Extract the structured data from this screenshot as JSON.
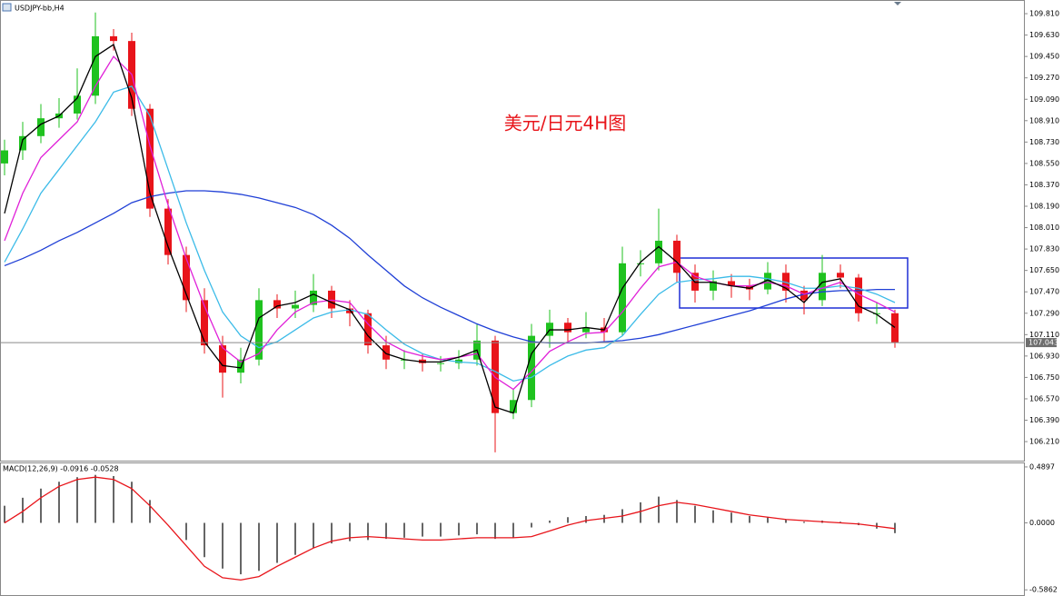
{
  "chart_data": [
    {
      "type": "candlestick",
      "title": "USDJPY-bb,H4",
      "annotation": "美元/日元4H图",
      "open": [
        108.55,
        108.66,
        108.78,
        108.93,
        108.97,
        109.12,
        109.62,
        109.58,
        109.01,
        108.17,
        107.78,
        107.4,
        107.02,
        106.79,
        106.9,
        107.4,
        107.33,
        107.36,
        107.48,
        107.33,
        107.29,
        107.02,
        106.9,
        106.9,
        106.87,
        106.87,
        106.9,
        107.06,
        106.45,
        106.56,
        107.1,
        107.21,
        107.13,
        107.17,
        107.13,
        107.71,
        107.71,
        107.9,
        107.63,
        107.48,
        107.56,
        107.52,
        107.49,
        107.63,
        107.48,
        107.4,
        107.63,
        107.59,
        107.29,
        107.29
      ],
      "high": [
        108.75,
        108.9,
        109.05,
        109.1,
        109.35,
        109.82,
        109.68,
        109.65,
        109.05,
        108.25,
        107.85,
        107.5,
        107.1,
        107.0,
        107.5,
        107.45,
        107.48,
        107.62,
        107.52,
        107.4,
        107.32,
        107.1,
        106.98,
        106.95,
        106.93,
        106.98,
        107.2,
        107.1,
        106.65,
        107.2,
        107.32,
        107.25,
        107.3,
        107.25,
        107.85,
        107.82,
        108.17,
        107.95,
        107.7,
        107.65,
        107.62,
        107.58,
        107.72,
        107.7,
        107.52,
        107.78,
        107.7,
        107.62,
        107.38,
        107.32
      ],
      "low": [
        108.45,
        108.58,
        108.72,
        108.85,
        108.92,
        109.05,
        109.5,
        108.95,
        108.1,
        107.7,
        107.3,
        106.95,
        106.58,
        106.7,
        106.85,
        107.25,
        107.25,
        107.3,
        107.25,
        107.18,
        106.95,
        106.82,
        106.82,
        106.8,
        106.8,
        106.82,
        106.85,
        106.12,
        106.4,
        106.5,
        107.0,
        107.05,
        107.08,
        107.05,
        107.1,
        107.6,
        107.65,
        107.55,
        107.38,
        107.4,
        107.42,
        107.4,
        107.45,
        107.38,
        107.28,
        107.35,
        107.5,
        107.22,
        107.2,
        107.0
      ],
      "close": [
        108.66,
        108.78,
        108.93,
        108.97,
        109.12,
        109.62,
        109.58,
        109.01,
        108.17,
        107.78,
        107.4,
        107.02,
        106.79,
        106.9,
        107.4,
        107.33,
        107.36,
        107.48,
        107.33,
        107.29,
        107.02,
        106.9,
        106.9,
        106.87,
        106.87,
        106.9,
        107.06,
        106.45,
        106.56,
        107.1,
        107.21,
        107.13,
        107.17,
        107.13,
        107.71,
        107.71,
        107.9,
        107.63,
        107.48,
        107.56,
        107.52,
        107.49,
        107.63,
        107.48,
        107.4,
        107.63,
        107.59,
        107.29,
        107.29,
        107.043
      ],
      "up_color": "#1fc21f",
      "down_color": "#e8141a",
      "series": [
        {
          "color": "#1f3fd6",
          "values": [
            107.69,
            107.75,
            107.82,
            107.9,
            107.97,
            108.05,
            108.13,
            108.22,
            108.27,
            108.3,
            108.32,
            108.32,
            108.31,
            108.29,
            108.26,
            108.22,
            108.18,
            108.12,
            108.03,
            107.92,
            107.78,
            107.65,
            107.52,
            107.42,
            107.34,
            107.27,
            107.2,
            107.14,
            107.09,
            107.05,
            107.04,
            107.04,
            107.04,
            107.05,
            107.06,
            107.08,
            107.11,
            107.15,
            107.19,
            107.23,
            107.27,
            107.31,
            107.36,
            107.41,
            107.45,
            107.47,
            107.48,
            107.48,
            107.49,
            107.49
          ]
        },
        {
          "color": "#3bbbe8",
          "values": [
            107.72,
            108.0,
            108.3,
            108.5,
            108.7,
            108.9,
            109.15,
            109.2,
            108.95,
            108.5,
            108.05,
            107.65,
            107.3,
            107.1,
            107.0,
            107.05,
            107.15,
            107.25,
            107.3,
            107.32,
            107.28,
            107.15,
            107.03,
            106.95,
            106.9,
            106.88,
            106.87,
            106.8,
            106.72,
            106.75,
            106.85,
            106.93,
            106.98,
            107.0,
            107.1,
            107.28,
            107.45,
            107.55,
            107.57,
            107.58,
            107.6,
            107.6,
            107.58,
            107.55,
            107.5,
            107.5,
            107.52,
            107.5,
            107.45,
            107.38
          ]
        },
        {
          "color": "#e020d8",
          "values": [
            107.9,
            108.3,
            108.6,
            108.75,
            108.9,
            109.2,
            109.45,
            109.3,
            108.7,
            108.2,
            107.75,
            107.35,
            107.0,
            106.88,
            106.95,
            107.15,
            107.3,
            107.38,
            107.4,
            107.38,
            107.2,
            107.05,
            106.97,
            106.93,
            106.9,
            106.92,
            106.95,
            106.75,
            106.65,
            106.8,
            106.97,
            107.05,
            107.12,
            107.13,
            107.3,
            107.5,
            107.68,
            107.72,
            107.6,
            107.55,
            107.52,
            107.52,
            107.55,
            107.52,
            107.45,
            107.5,
            107.55,
            107.45,
            107.38,
            107.3
          ]
        },
        {
          "color": "#000000",
          "values": [
            108.13,
            108.75,
            108.88,
            108.95,
            109.1,
            109.45,
            109.55,
            109.1,
            108.3,
            107.85,
            107.45,
            107.05,
            106.85,
            106.83,
            107.25,
            107.35,
            107.38,
            107.45,
            107.38,
            107.32,
            107.1,
            106.95,
            106.9,
            106.88,
            106.88,
            106.92,
            106.98,
            106.5,
            106.45,
            106.95,
            107.15,
            107.15,
            107.17,
            107.15,
            107.5,
            107.72,
            107.85,
            107.72,
            107.55,
            107.55,
            107.52,
            107.5,
            107.57,
            107.5,
            107.38,
            107.55,
            107.58,
            107.35,
            107.28,
            107.17
          ]
        }
      ],
      "ylim": [
        106.05,
        109.925
      ],
      "yticks": [
        {
          "value": 109.81,
          "label": "109.810"
        },
        {
          "value": 109.63,
          "label": "109.630"
        },
        {
          "value": 109.45,
          "label": "109.450"
        },
        {
          "value": 109.27,
          "label": "109.270"
        },
        {
          "value": 109.09,
          "label": "109.090"
        },
        {
          "value": 108.91,
          "label": "108.910"
        },
        {
          "value": 108.73,
          "label": "108.730"
        },
        {
          "value": 108.55,
          "label": "108.550"
        },
        {
          "value": 108.37,
          "label": "108.370"
        },
        {
          "value": 108.19,
          "label": "108.190"
        },
        {
          "value": 108.01,
          "label": "108.010"
        },
        {
          "value": 107.83,
          "label": "107.830"
        },
        {
          "value": 107.65,
          "label": "107.650"
        },
        {
          "value": 107.47,
          "label": "107.470"
        },
        {
          "value": 107.29,
          "label": "107.290"
        },
        {
          "value": 107.11,
          "label": "107.110"
        },
        {
          "value": 106.93,
          "label": "106.930"
        },
        {
          "value": 106.75,
          "label": "106.750"
        },
        {
          "value": 106.57,
          "label": "106.570"
        },
        {
          "value": 106.39,
          "label": "106.390"
        },
        {
          "value": 106.21,
          "label": "106.210"
        }
      ],
      "last_price": 107.043
    },
    {
      "type": "macd",
      "title": "MACD(12,26,9) -0.0916 -0.0528",
      "series": [
        {
          "style": "histogram",
          "color": "#000000",
          "values": [
            0.15,
            0.22,
            0.3,
            0.36,
            0.4,
            0.42,
            0.41,
            0.36,
            0.2,
            0.0,
            -0.15,
            -0.3,
            -0.4,
            -0.45,
            -0.42,
            -0.35,
            -0.28,
            -0.22,
            -0.18,
            -0.16,
            -0.15,
            -0.14,
            -0.13,
            -0.12,
            -0.12,
            -0.11,
            -0.1,
            -0.14,
            -0.13,
            -0.04,
            0.02,
            0.05,
            0.06,
            0.07,
            0.12,
            0.18,
            0.23,
            0.2,
            0.15,
            0.11,
            0.09,
            0.06,
            0.05,
            0.03,
            0.01,
            0.02,
            0.01,
            -0.02,
            -0.05,
            -0.09
          ]
        },
        {
          "style": "line",
          "color": "#e8141a",
          "values": [
            0.0,
            0.1,
            0.22,
            0.32,
            0.38,
            0.4,
            0.38,
            0.3,
            0.15,
            -0.02,
            -0.2,
            -0.38,
            -0.48,
            -0.5,
            -0.47,
            -0.38,
            -0.3,
            -0.22,
            -0.16,
            -0.13,
            -0.12,
            -0.13,
            -0.14,
            -0.15,
            -0.15,
            -0.14,
            -0.13,
            -0.13,
            -0.13,
            -0.12,
            -0.07,
            -0.02,
            0.02,
            0.04,
            0.06,
            0.1,
            0.15,
            0.18,
            0.16,
            0.13,
            0.1,
            0.07,
            0.05,
            0.03,
            0.02,
            0.01,
            0.0,
            -0.01,
            -0.03,
            -0.05
          ]
        }
      ],
      "ylim": [
        -0.64,
        0.521
      ],
      "yticks": [
        0.4897,
        {
          "value": 0,
          "label": "0.0000"
        },
        -0.5862
      ]
    }
  ]
}
